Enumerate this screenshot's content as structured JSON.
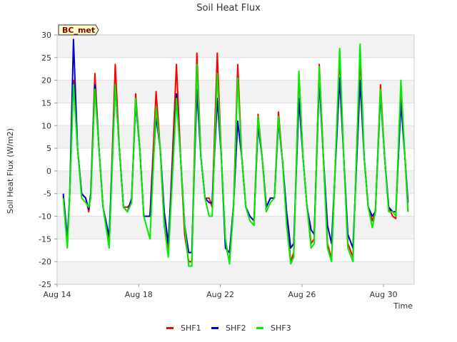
{
  "chart_data": {
    "type": "line",
    "title": "Soil Heat Flux",
    "xlabel": "Time",
    "ylabel": "Soil Heat Flux (W/m2)",
    "badge": "BC_met",
    "x_range_days": [
      14,
      31.5
    ],
    "x_ticks": [
      {
        "day": 14,
        "label": "Aug 14"
      },
      {
        "day": 18,
        "label": "Aug 18"
      },
      {
        "day": 22,
        "label": "Aug 22"
      },
      {
        "day": 26,
        "label": "Aug 26"
      },
      {
        "day": 30,
        "label": "Aug 30"
      }
    ],
    "ylim": [
      -25,
      30
    ],
    "y_ticks": [
      -25,
      -20,
      -15,
      -10,
      -5,
      0,
      5,
      10,
      15,
      20,
      25,
      30
    ],
    "grid": "horizontal alternating bands",
    "legend_position": "bottom",
    "series": [
      {
        "name": "SHF1",
        "color": "#ff0000",
        "points": [
          [
            14.3,
            -5.5
          ],
          [
            14.5,
            -16.5
          ],
          [
            14.62,
            -5
          ],
          [
            14.8,
            20
          ],
          [
            15.0,
            5
          ],
          [
            15.2,
            -5
          ],
          [
            15.4,
            -6
          ],
          [
            15.55,
            -9
          ],
          [
            15.65,
            -5
          ],
          [
            15.85,
            21.5
          ],
          [
            16.05,
            5
          ],
          [
            16.25,
            -8
          ],
          [
            16.55,
            -16.5
          ],
          [
            16.85,
            23.5
          ],
          [
            17.05,
            5
          ],
          [
            17.25,
            -8
          ],
          [
            17.45,
            -8
          ],
          [
            17.65,
            -7
          ],
          [
            17.85,
            17
          ],
          [
            18.05,
            5
          ],
          [
            18.25,
            -10
          ],
          [
            18.55,
            -10
          ],
          [
            18.85,
            17.5
          ],
          [
            19.05,
            5
          ],
          [
            19.25,
            -12
          ],
          [
            19.45,
            -17.5
          ],
          [
            19.85,
            23.5
          ],
          [
            20.05,
            3
          ],
          [
            20.25,
            -14
          ],
          [
            20.45,
            -20
          ],
          [
            20.6,
            -20
          ],
          [
            20.85,
            26
          ],
          [
            21.05,
            3
          ],
          [
            21.25,
            -6
          ],
          [
            21.45,
            -6
          ],
          [
            21.6,
            -8
          ],
          [
            21.85,
            26
          ],
          [
            22.05,
            3
          ],
          [
            22.25,
            -16
          ],
          [
            22.45,
            -20
          ],
          [
            22.65,
            -8
          ],
          [
            22.85,
            23.5
          ],
          [
            23.05,
            3
          ],
          [
            23.25,
            -8
          ],
          [
            23.45,
            -10
          ],
          [
            23.65,
            -11
          ],
          [
            23.85,
            12.5
          ],
          [
            24.05,
            3
          ],
          [
            24.25,
            -8
          ],
          [
            24.45,
            -6
          ],
          [
            24.65,
            -6
          ],
          [
            24.85,
            13
          ],
          [
            25.05,
            2
          ],
          [
            25.25,
            -10
          ],
          [
            25.45,
            -20
          ],
          [
            25.6,
            -18
          ],
          [
            25.85,
            21.5
          ],
          [
            26.05,
            3
          ],
          [
            26.25,
            -8
          ],
          [
            26.45,
            -16
          ],
          [
            26.6,
            -15
          ],
          [
            26.85,
            23.5
          ],
          [
            27.05,
            3
          ],
          [
            27.25,
            -16
          ],
          [
            27.45,
            -19.5
          ],
          [
            27.85,
            25.5
          ],
          [
            28.05,
            3
          ],
          [
            28.25,
            -16
          ],
          [
            28.5,
            -19
          ],
          [
            28.85,
            25.5
          ],
          [
            29.05,
            3
          ],
          [
            29.25,
            -8
          ],
          [
            29.45,
            -11
          ],
          [
            29.6,
            -9
          ],
          [
            29.85,
            19
          ],
          [
            30.05,
            3
          ],
          [
            30.25,
            -8
          ],
          [
            30.45,
            -10
          ],
          [
            30.6,
            -10.5
          ],
          [
            30.85,
            18
          ],
          [
            31.05,
            3
          ],
          [
            31.2,
            -9
          ]
        ]
      },
      {
        "name": "SHF2",
        "color": "#0000cc",
        "points": [
          [
            14.3,
            -5
          ],
          [
            14.5,
            -15
          ],
          [
            14.62,
            -5
          ],
          [
            14.8,
            29
          ],
          [
            15.0,
            5
          ],
          [
            15.2,
            -5
          ],
          [
            15.4,
            -6
          ],
          [
            15.55,
            -8.5
          ],
          [
            15.65,
            -5
          ],
          [
            15.85,
            19
          ],
          [
            16.05,
            5
          ],
          [
            16.25,
            -8
          ],
          [
            16.55,
            -14.5
          ],
          [
            16.85,
            19
          ],
          [
            17.05,
            5
          ],
          [
            17.25,
            -8
          ],
          [
            17.45,
            -9
          ],
          [
            17.65,
            -6
          ],
          [
            17.85,
            15
          ],
          [
            18.05,
            5
          ],
          [
            18.25,
            -10
          ],
          [
            18.55,
            -10
          ],
          [
            18.85,
            12
          ],
          [
            19.05,
            5
          ],
          [
            19.25,
            -9
          ],
          [
            19.45,
            -16
          ],
          [
            19.85,
            17
          ],
          [
            20.05,
            3
          ],
          [
            20.25,
            -12
          ],
          [
            20.45,
            -18
          ],
          [
            20.6,
            -18
          ],
          [
            20.85,
            18
          ],
          [
            21.05,
            3
          ],
          [
            21.25,
            -6
          ],
          [
            21.45,
            -7
          ],
          [
            21.6,
            -7
          ],
          [
            21.85,
            16
          ],
          [
            22.05,
            3
          ],
          [
            22.25,
            -17
          ],
          [
            22.45,
            -18
          ],
          [
            22.65,
            -7.5
          ],
          [
            22.85,
            11
          ],
          [
            23.05,
            3
          ],
          [
            23.25,
            -8
          ],
          [
            23.45,
            -10
          ],
          [
            23.65,
            -11
          ],
          [
            23.85,
            10
          ],
          [
            24.05,
            3
          ],
          [
            24.25,
            -8
          ],
          [
            24.45,
            -6
          ],
          [
            24.65,
            -6
          ],
          [
            24.85,
            11
          ],
          [
            25.05,
            2
          ],
          [
            25.25,
            -9
          ],
          [
            25.45,
            -17
          ],
          [
            25.6,
            -16
          ],
          [
            25.85,
            16
          ],
          [
            26.05,
            3
          ],
          [
            26.25,
            -8
          ],
          [
            26.45,
            -13
          ],
          [
            26.6,
            -14
          ],
          [
            26.85,
            20
          ],
          [
            27.05,
            3
          ],
          [
            27.25,
            -12
          ],
          [
            27.45,
            -16
          ],
          [
            27.85,
            20.5
          ],
          [
            28.05,
            3
          ],
          [
            28.25,
            -14
          ],
          [
            28.5,
            -17
          ],
          [
            28.85,
            20
          ],
          [
            29.05,
            3
          ],
          [
            29.25,
            -8
          ],
          [
            29.45,
            -10
          ],
          [
            29.6,
            -9
          ],
          [
            29.85,
            17
          ],
          [
            30.05,
            3
          ],
          [
            30.25,
            -8
          ],
          [
            30.45,
            -9
          ],
          [
            30.6,
            -9
          ],
          [
            30.85,
            15
          ],
          [
            31.05,
            3
          ],
          [
            31.2,
            -7
          ]
        ]
      },
      {
        "name": "SHF3",
        "color": "#00ee00",
        "points": [
          [
            14.3,
            -6
          ],
          [
            14.5,
            -17
          ],
          [
            14.62,
            -5
          ],
          [
            14.8,
            19
          ],
          [
            15.0,
            5
          ],
          [
            15.2,
            -6
          ],
          [
            15.4,
            -7
          ],
          [
            15.55,
            -8
          ],
          [
            15.65,
            -6
          ],
          [
            15.85,
            18
          ],
          [
            16.05,
            5
          ],
          [
            16.25,
            -8
          ],
          [
            16.55,
            -17
          ],
          [
            16.85,
            19
          ],
          [
            17.05,
            5
          ],
          [
            17.25,
            -8
          ],
          [
            17.45,
            -9
          ],
          [
            17.65,
            -7
          ],
          [
            17.85,
            16
          ],
          [
            18.05,
            5
          ],
          [
            18.25,
            -10
          ],
          [
            18.55,
            -15
          ],
          [
            18.85,
            14
          ],
          [
            19.05,
            5
          ],
          [
            19.25,
            -12
          ],
          [
            19.45,
            -19
          ],
          [
            19.85,
            16
          ],
          [
            20.05,
            3
          ],
          [
            20.25,
            -12
          ],
          [
            20.45,
            -21
          ],
          [
            20.6,
            -21
          ],
          [
            20.85,
            23.5
          ],
          [
            21.05,
            3
          ],
          [
            21.25,
            -6
          ],
          [
            21.45,
            -10
          ],
          [
            21.6,
            -10
          ],
          [
            21.85,
            21.5
          ],
          [
            22.05,
            3
          ],
          [
            22.25,
            -15
          ],
          [
            22.45,
            -20.5
          ],
          [
            22.65,
            -8
          ],
          [
            22.85,
            20.5
          ],
          [
            23.05,
            3
          ],
          [
            23.25,
            -8
          ],
          [
            23.45,
            -11
          ],
          [
            23.65,
            -12
          ],
          [
            23.85,
            12
          ],
          [
            24.05,
            3
          ],
          [
            24.25,
            -9
          ],
          [
            24.45,
            -7
          ],
          [
            24.65,
            -6
          ],
          [
            24.85,
            12
          ],
          [
            25.05,
            2
          ],
          [
            25.25,
            -12
          ],
          [
            25.45,
            -20.5
          ],
          [
            25.6,
            -19
          ],
          [
            25.85,
            22
          ],
          [
            26.05,
            3
          ],
          [
            26.25,
            -8
          ],
          [
            26.45,
            -17
          ],
          [
            26.6,
            -16
          ],
          [
            26.85,
            23
          ],
          [
            27.05,
            3
          ],
          [
            27.25,
            -17
          ],
          [
            27.45,
            -20
          ],
          [
            27.85,
            27
          ],
          [
            28.05,
            3
          ],
          [
            28.25,
            -17
          ],
          [
            28.5,
            -20
          ],
          [
            28.85,
            28
          ],
          [
            29.05,
            3
          ],
          [
            29.25,
            -8
          ],
          [
            29.45,
            -12.5
          ],
          [
            29.6,
            -9
          ],
          [
            29.85,
            18
          ],
          [
            30.05,
            3
          ],
          [
            30.25,
            -9
          ],
          [
            30.45,
            -9
          ],
          [
            30.6,
            -10
          ],
          [
            30.85,
            20
          ],
          [
            31.05,
            3
          ],
          [
            31.2,
            -9
          ]
        ]
      }
    ]
  }
}
